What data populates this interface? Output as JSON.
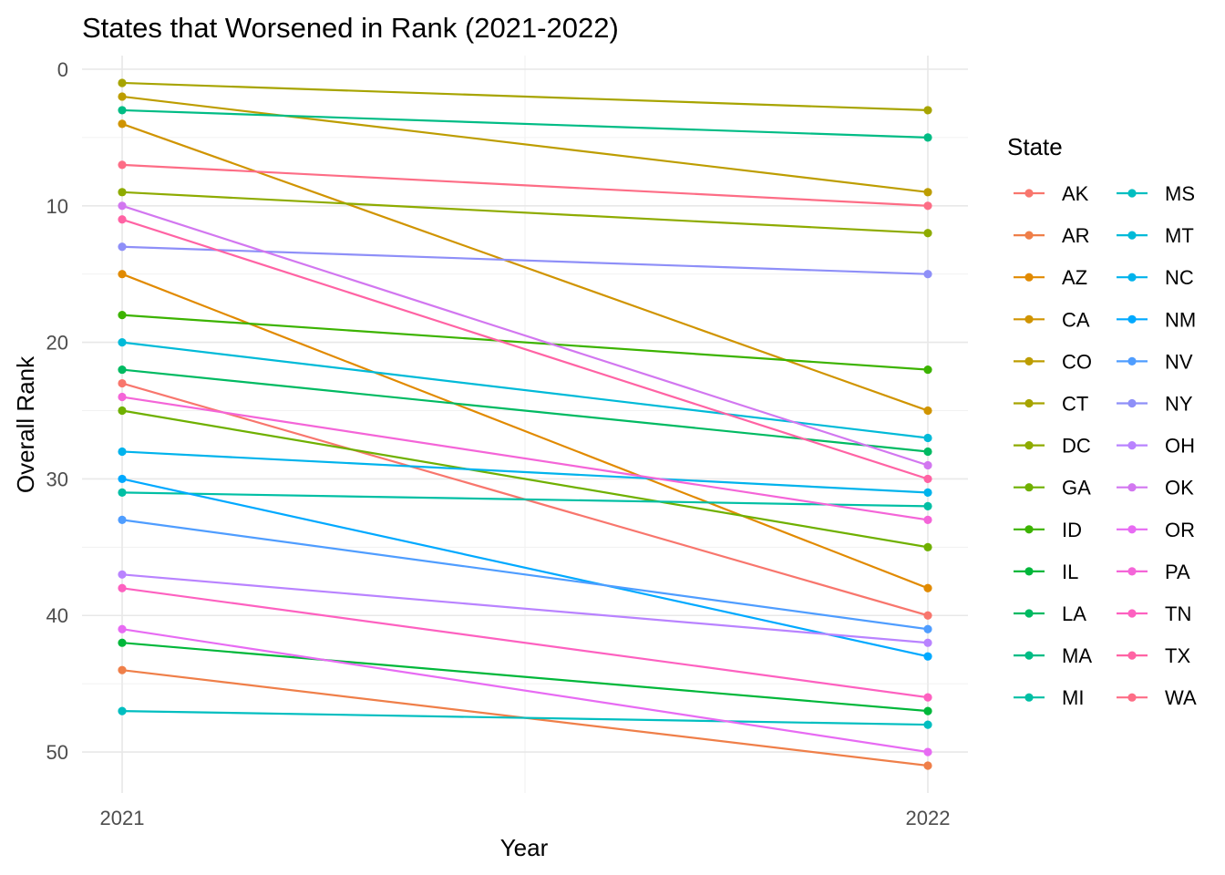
{
  "chart_data": {
    "type": "line",
    "title": "States that Worsened in Rank (2021-2022)",
    "xlabel": "Year",
    "ylabel": "Overall Rank",
    "x": [
      "2021",
      "2022"
    ],
    "ylim": [
      53,
      -1
    ],
    "y_reversed": true,
    "y_ticks": [
      0,
      10,
      20,
      30,
      40,
      50
    ],
    "grid": true,
    "legend": {
      "title": "State",
      "position": "right",
      "columns": 2
    },
    "series": [
      {
        "name": "AK",
        "color": "#F8766D",
        "values": [
          23,
          40
        ]
      },
      {
        "name": "AR",
        "color": "#EF7F49",
        "values": [
          44,
          51
        ]
      },
      {
        "name": "AZ",
        "color": "#E18A00",
        "values": [
          15,
          38
        ]
      },
      {
        "name": "CA",
        "color": "#D09400",
        "values": [
          4,
          25
        ]
      },
      {
        "name": "CO",
        "color": "#BD9D00",
        "values": [
          2,
          9
        ]
      },
      {
        "name": "CT",
        "color": "#A7A400",
        "values": [
          1,
          3
        ]
      },
      {
        "name": "DC",
        "color": "#8EAB00",
        "values": [
          9,
          12
        ]
      },
      {
        "name": "GA",
        "color": "#6FB000",
        "values": [
          25,
          35
        ]
      },
      {
        "name": "ID",
        "color": "#3CB300",
        "values": [
          18,
          22
        ]
      },
      {
        "name": "IL",
        "color": "#00B73A",
        "values": [
          42,
          47
        ]
      },
      {
        "name": "LA",
        "color": "#00BA62",
        "values": [
          22,
          28
        ]
      },
      {
        "name": "MA",
        "color": "#00BC85",
        "values": [
          3,
          5
        ]
      },
      {
        "name": "MI",
        "color": "#00BFA4",
        "values": [
          31,
          32
        ]
      },
      {
        "name": "MS",
        "color": "#00BEC0",
        "values": [
          47,
          48
        ]
      },
      {
        "name": "MT",
        "color": "#00BAD8",
        "values": [
          20,
          27
        ]
      },
      {
        "name": "NC",
        "color": "#00B3EC",
        "values": [
          28,
          31
        ]
      },
      {
        "name": "NM",
        "color": "#00A9FF",
        "values": [
          30,
          43
        ]
      },
      {
        "name": "NV",
        "color": "#4F9DFF",
        "values": [
          33,
          41
        ]
      },
      {
        "name": "NY",
        "color": "#8E8FF8",
        "values": [
          13,
          15
        ]
      },
      {
        "name": "OH",
        "color": "#B983FF",
        "values": [
          37,
          42
        ]
      },
      {
        "name": "OK",
        "color": "#D277F0",
        "values": [
          10,
          29
        ]
      },
      {
        "name": "OR",
        "color": "#E76BF3",
        "values": [
          41,
          50
        ]
      },
      {
        "name": "PA",
        "color": "#F465D8",
        "values": [
          24,
          33
        ]
      },
      {
        "name": "TN",
        "color": "#FD61C0",
        "values": [
          38,
          46
        ]
      },
      {
        "name": "TX",
        "color": "#FF63A4",
        "values": [
          11,
          30
        ]
      },
      {
        "name": "WA",
        "color": "#FD6D86",
        "values": [
          7,
          10
        ]
      }
    ]
  }
}
